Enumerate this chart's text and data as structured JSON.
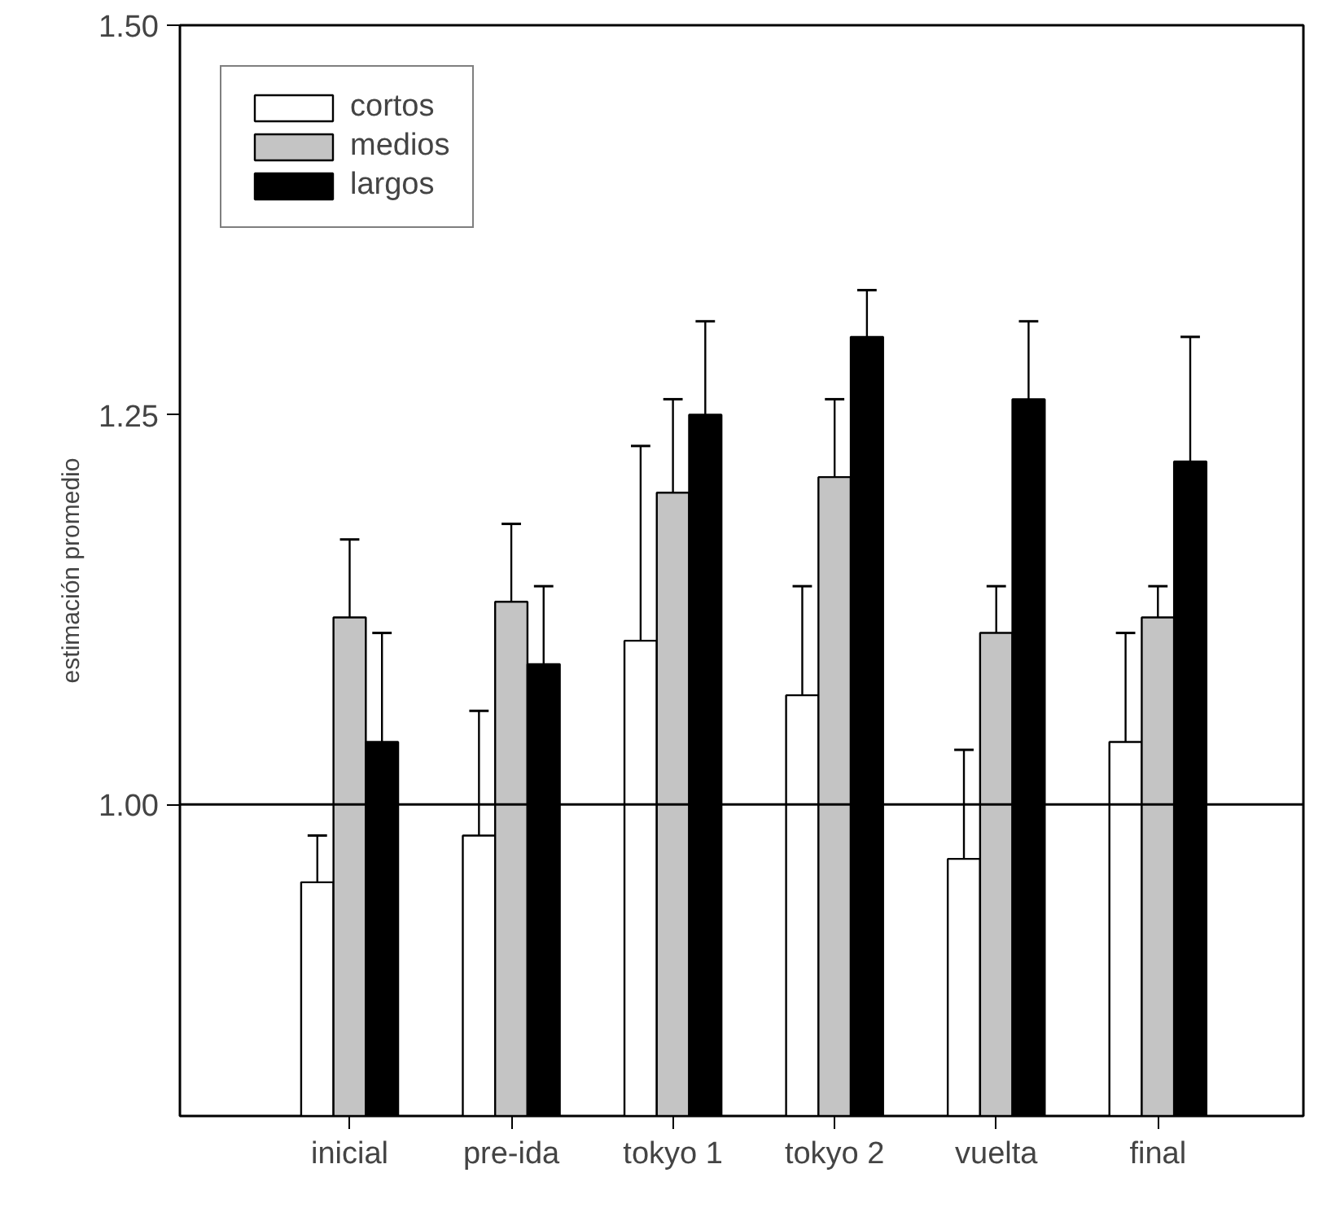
{
  "chart_data": {
    "type": "bar",
    "ylabel": "estimación promedio",
    "categories": [
      "inicial",
      "pre-ida",
      "tokyo 1",
      "tokyo 2",
      "vuelta",
      "final"
    ],
    "series": [
      {
        "name": "cortos",
        "color": "#ffffff",
        "values": [
          0.95,
          0.98,
          1.105,
          1.07,
          0.965,
          1.04
        ],
        "errors": [
          [
            0.95,
            0.98
          ],
          [
            0.98,
            1.06
          ],
          [
            1.105,
            1.23
          ],
          [
            1.07,
            1.14
          ],
          [
            0.965,
            1.035
          ],
          [
            1.04,
            1.11
          ]
        ]
      },
      {
        "name": "medios",
        "color": "#c4c4c4",
        "values": [
          1.12,
          1.13,
          1.2,
          1.21,
          1.11,
          1.12
        ],
        "errors": [
          [
            1.12,
            1.17
          ],
          [
            1.13,
            1.18
          ],
          [
            1.2,
            1.26
          ],
          [
            1.21,
            1.26
          ],
          [
            1.11,
            1.14
          ],
          [
            1.12,
            1.14
          ]
        ]
      },
      {
        "name": "largos",
        "color": "#000000",
        "values": [
          1.04,
          1.09,
          1.25,
          1.3,
          1.26,
          1.22
        ],
        "errors": [
          [
            1.04,
            1.11
          ],
          [
            1.09,
            1.14
          ],
          [
            1.25,
            1.31
          ],
          [
            1.3,
            1.33
          ],
          [
            1.26,
            1.31
          ],
          [
            1.22,
            1.3
          ]
        ]
      }
    ],
    "ylim": [
      0.8,
      1.5
    ],
    "yticks": [
      {
        "value": 1.0,
        "label": "1.00"
      },
      {
        "value": 1.25,
        "label": "1.25"
      },
      {
        "value": 1.5,
        "label": "1.50"
      }
    ],
    "ref_lines": [
      {
        "axis": "y",
        "value": 1.0,
        "color": "#000000"
      }
    ],
    "grid": false,
    "legend": "top left"
  }
}
